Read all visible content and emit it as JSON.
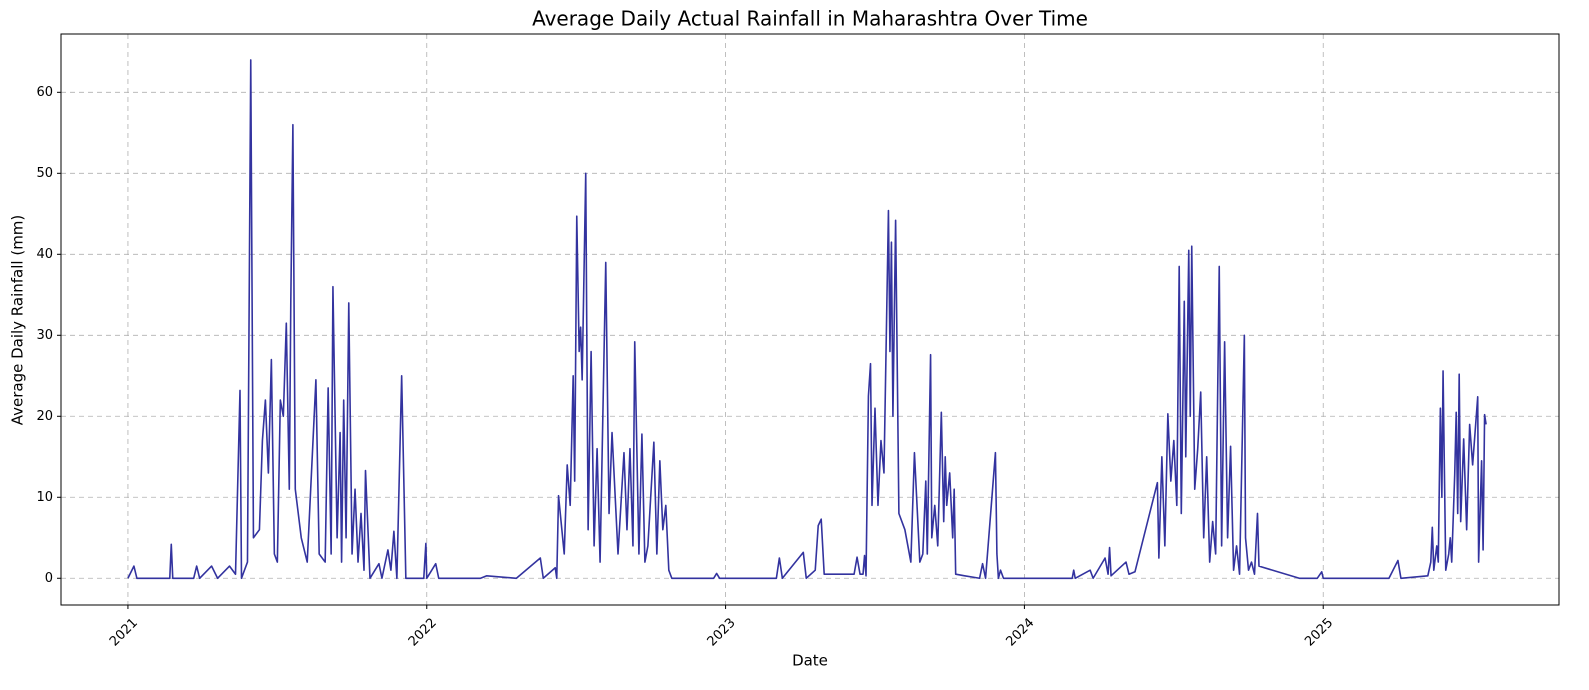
{
  "chart_data": {
    "type": "line",
    "title": "Average Daily Actual Rainfall in Maharashtra Over Time",
    "x_label": "Date",
    "y_label": "Average Daily Rainfall (mm)",
    "color": "#33339f",
    "grid": true,
    "xlim": [
      2020.776,
      2025.789
    ],
    "ylim": [
      -3.3,
      67.2
    ],
    "xticks": [
      2021,
      2022,
      2023,
      2024,
      2025
    ],
    "yticks": [
      0,
      10,
      20,
      30,
      40,
      50,
      60
    ],
    "x": [
      2021.0,
      2021.02,
      2021.03,
      2021.14,
      2021.145,
      2021.15,
      2021.22,
      2021.23,
      2021.24,
      2021.28,
      2021.3,
      2021.34,
      2021.36,
      2021.375,
      2021.38,
      2021.4,
      2021.411,
      2021.42,
      2021.44,
      2021.45,
      2021.46,
      2021.47,
      2021.48,
      2021.49,
      2021.5,
      2021.51,
      2021.52,
      2021.53,
      2021.54,
      2021.545,
      2021.552,
      2021.56,
      2021.57,
      2021.58,
      2021.6,
      2021.629,
      2021.64,
      2021.66,
      2021.67,
      2021.68,
      2021.686,
      2021.7,
      2021.71,
      2021.715,
      2021.722,
      2021.73,
      2021.739,
      2021.75,
      2021.76,
      2021.77,
      2021.78,
      2021.79,
      2021.795,
      2021.81,
      2021.84,
      2021.85,
      2021.87,
      2021.88,
      2021.89,
      2021.9,
      2021.916,
      2021.93,
      2021.99,
      2021.997,
      2022.0,
      2022.03,
      2022.04,
      2022.18,
      2022.2,
      2022.3,
      2022.38,
      2022.39,
      2022.43,
      2022.435,
      2022.441,
      2022.46,
      2022.47,
      2022.48,
      2022.49,
      2022.495,
      2022.502,
      2022.51,
      2022.515,
      2022.52,
      2022.532,
      2022.54,
      2022.55,
      2022.56,
      2022.57,
      2022.58,
      2022.599,
      2022.61,
      2022.62,
      2022.64,
      2022.66,
      2022.67,
      2022.68,
      2022.69,
      2022.696,
      2022.71,
      2022.72,
      2022.73,
      2022.74,
      2022.76,
      2022.77,
      2022.78,
      2022.79,
      2022.8,
      2022.81,
      2022.82,
      2022.96,
      2022.97,
      2022.98,
      2023.17,
      2023.18,
      2023.19,
      2023.26,
      2023.27,
      2023.3,
      2023.31,
      2023.32,
      2023.33,
      2023.43,
      2023.44,
      2023.45,
      2023.46,
      2023.465,
      2023.47,
      2023.478,
      2023.485,
      2023.49,
      2023.5,
      2023.51,
      2023.52,
      2023.53,
      2023.545,
      2023.55,
      2023.555,
      2023.56,
      2023.569,
      2023.58,
      2023.6,
      2023.62,
      2023.632,
      2023.65,
      2023.66,
      2023.67,
      2023.675,
      2023.686,
      2023.69,
      2023.7,
      2023.71,
      2023.722,
      2023.73,
      2023.735,
      2023.74,
      2023.75,
      2023.76,
      2023.765,
      2023.77,
      2023.8,
      2023.85,
      2023.86,
      2023.87,
      2023.903,
      2023.908,
      2023.913,
      2023.92,
      2023.93,
      2024.16,
      2024.165,
      2024.17,
      2024.22,
      2024.23,
      2024.27,
      2024.28,
      2024.285,
      2024.29,
      2024.34,
      2024.35,
      2024.37,
      2024.445,
      2024.45,
      2024.46,
      2024.47,
      2024.48,
      2024.49,
      2024.5,
      2024.51,
      2024.518,
      2024.525,
      2024.535,
      2024.54,
      2024.55,
      2024.555,
      2024.56,
      2024.57,
      2024.58,
      2024.59,
      2024.6,
      2024.61,
      2024.62,
      2024.63,
      2024.64,
      2024.652,
      2024.66,
      2024.67,
      2024.68,
      2024.69,
      2024.7,
      2024.71,
      2024.72,
      2024.736,
      2024.74,
      2024.75,
      2024.76,
      2024.77,
      2024.78,
      2024.785,
      2024.92,
      2024.98,
      2024.995,
      2025.0,
      2025.22,
      2025.25,
      2025.26,
      2025.35,
      2025.36,
      2025.365,
      2025.37,
      2025.38,
      2025.385,
      2025.392,
      2025.397,
      2025.401,
      2025.41,
      2025.42,
      2025.425,
      2025.43,
      2025.44,
      2025.445,
      2025.45,
      2025.455,
      2025.46,
      2025.47,
      2025.48,
      2025.49,
      2025.5,
      2025.517,
      2025.52,
      2025.53,
      2025.535,
      2025.54,
      2025.545
    ],
    "values": [
      0,
      1.5,
      0,
      0,
      4.2,
      0,
      0,
      1.5,
      0,
      1.5,
      0,
      1.5,
      0.5,
      23.2,
      0,
      2,
      64,
      5,
      6,
      17,
      22,
      13,
      27,
      3,
      2,
      22,
      20,
      31.5,
      11,
      34,
      56,
      11,
      8,
      5,
      2,
      24.5,
      3,
      2,
      23.5,
      3,
      36,
      5,
      18,
      2,
      22,
      5,
      34,
      3,
      11,
      2,
      8,
      1,
      13.3,
      0,
      1.8,
      0,
      3.5,
      1,
      5.8,
      0,
      25,
      0,
      0,
      4.3,
      0,
      1.8,
      0,
      0,
      0.3,
      0,
      2.5,
      0,
      1.3,
      0,
      10.2,
      3,
      14,
      9,
      25,
      12,
      44.7,
      28,
      31,
      24.5,
      50,
      6,
      28,
      4,
      16,
      2,
      39,
      8,
      18,
      3,
      15.5,
      6,
      16,
      4,
      29.2,
      3,
      17.8,
      2,
      4,
      16.8,
      3,
      14.5,
      6,
      9,
      1,
      0,
      0,
      0.6,
      0,
      0,
      2.5,
      0,
      3.2,
      0,
      1,
      6.5,
      7.3,
      0.5,
      0.5,
      2.6,
      0.5,
      0.5,
      2.8,
      0.3,
      22.5,
      26.5,
      9,
      21,
      9,
      17,
      13,
      45.4,
      28,
      41.5,
      20,
      44.2,
      8,
      6,
      2,
      15.5,
      2,
      3,
      12,
      3,
      27.6,
      5,
      9,
      4,
      20.5,
      7,
      15,
      9,
      13,
      5,
      11,
      0.5,
      0.3,
      0,
      1.8,
      0,
      15.5,
      3,
      0,
      1,
      0,
      0,
      1,
      0,
      1,
      0,
      2.5,
      0.5,
      3.8,
      0.3,
      2,
      0.5,
      0.8,
      11.8,
      2.5,
      15,
      4,
      20.3,
      12,
      17,
      9,
      38.5,
      8,
      34.2,
      15,
      40.5,
      20,
      41,
      11,
      16,
      23,
      5,
      15,
      2,
      7,
      3,
      38.5,
      4,
      29.2,
      5,
      16.3,
      1,
      4,
      0.5,
      30,
      5,
      1,
      2,
      0.5,
      8,
      1.5,
      0,
      0,
      0.8,
      0,
      0,
      2.2,
      0,
      0.3,
      2,
      6.3,
      1,
      4,
      2,
      21,
      10,
      25.6,
      1,
      3,
      5,
      2,
      12.8,
      20.5,
      8,
      25.2,
      7,
      17.2,
      6,
      19,
      14,
      22.4,
      2,
      14.5,
      3.5,
      20.2,
      19
    ]
  }
}
